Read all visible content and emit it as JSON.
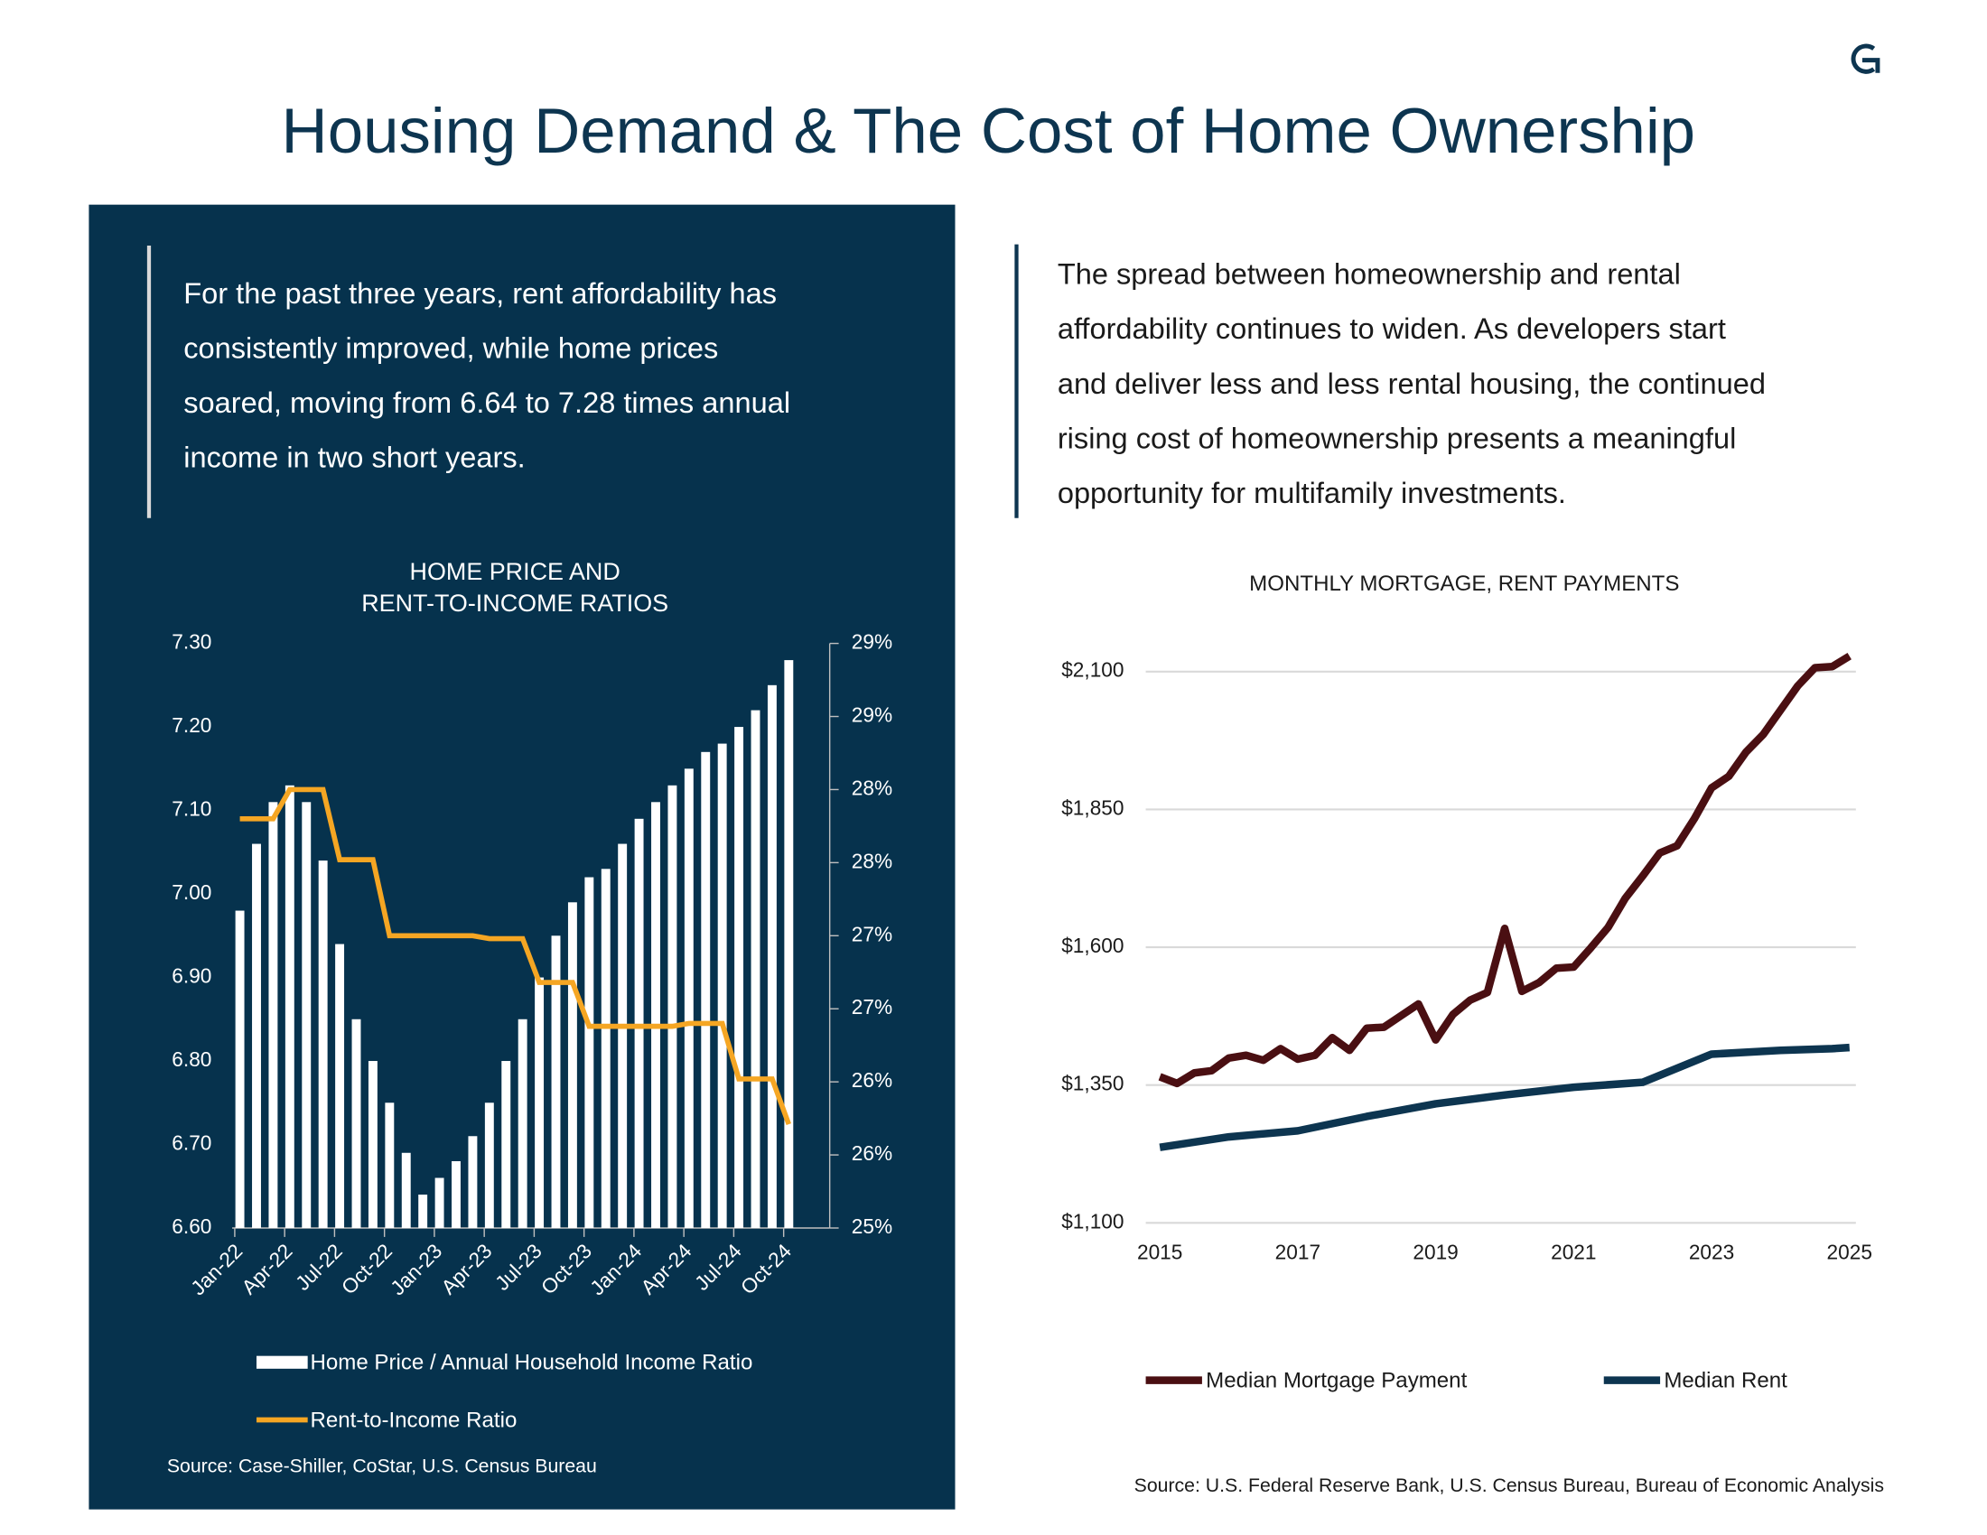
{
  "header": {
    "title": "Housing Demand & The Cost of Home Ownership"
  },
  "left_text": [
    "For the past three years, rent affordability has",
    "consistently improved, while home prices",
    "soared, moving from 6.64 to 7.28 times annual",
    "income in two short years."
  ],
  "right_text": [
    "The spread between homeownership and rental",
    "affordability continues to widen. As developers start",
    "and deliver less and less rental housing, the continued",
    "rising cost of homeownership presents a meaningful",
    "opportunity for multifamily investments."
  ],
  "chart_data": [
    {
      "type": "bar_line",
      "title": [
        "HOME PRICE AND",
        "RENT-TO-INCOME RATIOS"
      ],
      "categories": [
        "Jan-22",
        null,
        null,
        "Apr-22",
        null,
        null,
        "Jul-22",
        null,
        null,
        "Oct-22",
        null,
        null,
        "Jan-23",
        null,
        null,
        "Apr-23",
        null,
        null,
        "Jul-23",
        null,
        null,
        "Oct-23",
        null,
        null,
        "Jan-24",
        null,
        null,
        "Apr-24",
        null,
        null,
        "Jul-24",
        null,
        null,
        "Oct-24"
      ],
      "series": [
        {
          "name": "Home Price / Annual Household Income Ratio",
          "type": "bar",
          "color": "#ffffff",
          "values": [
            6.98,
            7.06,
            7.11,
            7.13,
            7.11,
            7.04,
            6.94,
            6.85,
            6.8,
            6.75,
            6.69,
            6.64,
            6.66,
            6.68,
            6.71,
            6.75,
            6.8,
            6.85,
            6.9,
            6.95,
            6.99,
            7.02,
            7.03,
            7.06,
            7.09,
            7.11,
            7.13,
            7.15,
            7.17,
            7.18,
            7.2,
            7.22,
            7.25,
            7.28
          ]
        },
        {
          "name": "Rent-to-Income Ratio",
          "type": "line",
          "axis": "y2",
          "color": "#f5a623",
          "values": [
            27.8,
            27.8,
            27.8,
            28.0,
            28.0,
            28.0,
            27.52,
            27.52,
            27.52,
            27.0,
            27.0,
            27.0,
            27.0,
            27.0,
            27.0,
            26.98,
            26.98,
            26.98,
            26.68,
            26.68,
            26.68,
            26.38,
            26.38,
            26.38,
            26.38,
            26.38,
            26.38,
            26.4,
            26.4,
            26.4,
            26.02,
            26.02,
            26.02,
            25.71
          ]
        }
      ],
      "ylim": [
        6.6,
        7.3
      ],
      "yticks": [
        {
          "value": 6.6,
          "label": "6.60"
        },
        {
          "value": 6.7,
          "label": "6.70"
        },
        {
          "value": 6.8,
          "label": "6.80"
        },
        {
          "value": 6.9,
          "label": "6.90"
        },
        {
          "value": 7.0,
          "label": "7.00"
        },
        {
          "value": 7.1,
          "label": "7.10"
        },
        {
          "value": 7.2,
          "label": "7.20"
        },
        {
          "value": 7.3,
          "label": "7.30"
        }
      ],
      "y2lim": [
        25,
        29
      ],
      "y2ticks": [
        {
          "value": 25,
          "label": "25%"
        },
        {
          "value": 25.5,
          "label": "26%"
        },
        {
          "value": 26,
          "label": "26%"
        },
        {
          "value": 26.5,
          "label": "27%"
        },
        {
          "value": 27,
          "label": "27%"
        },
        {
          "value": 27.5,
          "label": "28%"
        },
        {
          "value": 28,
          "label": "28%"
        },
        {
          "value": 28.5,
          "label": "29%"
        },
        {
          "value": 29,
          "label": "29%"
        }
      ],
      "source": "Source: Case-Shiller, CoStar, U.S. Census Bureau"
    },
    {
      "type": "line",
      "title": "MONTHLY MORTGAGE, RENT PAYMENTS",
      "series": [
        {
          "name": "Median Mortgage Payment",
          "color": "#4a0f12",
          "x": [
            2015,
            2015.25,
            2015.5,
            2015.75,
            2016,
            2016.25,
            2016.5,
            2016.75,
            2017,
            2017.25,
            2017.5,
            2017.75,
            2018,
            2018.25,
            2018.5,
            2018.75,
            2019,
            2019.25,
            2019.5,
            2019.75,
            2020,
            2020.25,
            2020.5,
            2020.75,
            2021,
            2021.25,
            2021.5,
            2021.75,
            2022,
            2022.25,
            2022.5,
            2022.75,
            2023,
            2023.25,
            2023.5,
            2023.75,
            2024,
            2024.25,
            2024.5,
            2024.75,
            2025
          ],
          "values": [
            1365,
            1353,
            1372,
            1376,
            1399,
            1404,
            1395,
            1416,
            1397,
            1404,
            1436,
            1413,
            1453,
            1455,
            1476,
            1497,
            1432,
            1478,
            1504,
            1518,
            1634,
            1520,
            1536,
            1562,
            1564,
            1599,
            1636,
            1689,
            1729,
            1771,
            1784,
            1833,
            1889,
            1910,
            1954,
            1986,
            2030,
            2074,
            2107,
            2109,
            2128
          ]
        },
        {
          "name": "Median Rent",
          "color": "#0d3550",
          "x": [
            2015,
            2016,
            2017,
            2018,
            2019,
            2020,
            2021,
            2022,
            2023,
            2024,
            2024.75,
            2025
          ],
          "values": [
            1237,
            1256,
            1267,
            1293,
            1316,
            1332,
            1346,
            1355,
            1406,
            1413,
            1416,
            1418
          ]
        }
      ],
      "xlim": [
        2015,
        2025
      ],
      "xticks": [
        2015,
        2017,
        2019,
        2021,
        2023,
        2025
      ],
      "ylim": [
        1100,
        2100
      ],
      "yticks": [
        {
          "value": 1100,
          "label": "$1,100"
        },
        {
          "value": 1350,
          "label": "$1,350"
        },
        {
          "value": 1600,
          "label": "$1,600"
        },
        {
          "value": 1850,
          "label": "$1,850"
        },
        {
          "value": 2100,
          "label": "$2,100"
        }
      ],
      "grid": true,
      "source": "Source: U.S. Federal Reserve Bank, U.S. Census Bureau, Bureau of Economic Analysis"
    }
  ]
}
